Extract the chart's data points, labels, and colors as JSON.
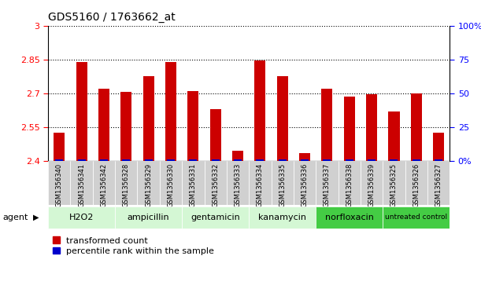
{
  "title": "GDS5160 / 1763662_at",
  "samples": [
    "GSM1356340",
    "GSM1356341",
    "GSM1356342",
    "GSM1356328",
    "GSM1356329",
    "GSM1356330",
    "GSM1356331",
    "GSM1356332",
    "GSM1356333",
    "GSM1356334",
    "GSM1356335",
    "GSM1356336",
    "GSM1356337",
    "GSM1356338",
    "GSM1356339",
    "GSM1356325",
    "GSM1356326",
    "GSM1356327"
  ],
  "transformed_count": [
    2.525,
    2.84,
    2.72,
    2.705,
    2.775,
    2.84,
    2.71,
    2.63,
    2.445,
    2.845,
    2.775,
    2.435,
    2.72,
    2.685,
    2.695,
    2.62,
    2.7,
    2.525
  ],
  "percentile_rank": [
    2,
    3,
    4,
    2,
    3,
    3,
    3,
    2,
    2,
    3,
    3,
    2,
    3,
    3,
    3,
    2,
    3,
    2
  ],
  "groups": [
    {
      "label": "H2O2",
      "indices": [
        0,
        1,
        2
      ]
    },
    {
      "label": "ampicillin",
      "indices": [
        3,
        4,
        5
      ]
    },
    {
      "label": "gentamicin",
      "indices": [
        6,
        7,
        8
      ]
    },
    {
      "label": "kanamycin",
      "indices": [
        9,
        10,
        11
      ]
    },
    {
      "label": "norfloxacin",
      "indices": [
        12,
        13,
        14
      ]
    },
    {
      "label": "untreated control",
      "indices": [
        15,
        16,
        17
      ]
    }
  ],
  "group_colors": [
    "#d4f7d4",
    "#d4f7d4",
    "#d4f7d4",
    "#d4f7d4",
    "#44cc44",
    "#44cc44"
  ],
  "ylim_left": [
    2.4,
    3.0
  ],
  "ylim_right": [
    0,
    100
  ],
  "yticks_left": [
    2.4,
    2.55,
    2.7,
    2.85,
    3.0
  ],
  "yticks_right": [
    0,
    25,
    50,
    75,
    100
  ],
  "ytick_labels_left": [
    "2.4",
    "2.55",
    "2.7",
    "2.85",
    "3"
  ],
  "ytick_labels_right": [
    "0%",
    "25",
    "50",
    "75",
    "100%"
  ],
  "bar_color_red": "#cc0000",
  "bar_color_blue": "#0000cc",
  "bg_color": "#ffffff",
  "plot_bg": "#ffffff",
  "agent_label": "agent",
  "legend_red": "transformed count",
  "legend_blue": "percentile rank within the sample",
  "tick_bg_color": "#d0d0d0",
  "grid_yticks": [
    2.55,
    2.7,
    2.85,
    3.0
  ]
}
